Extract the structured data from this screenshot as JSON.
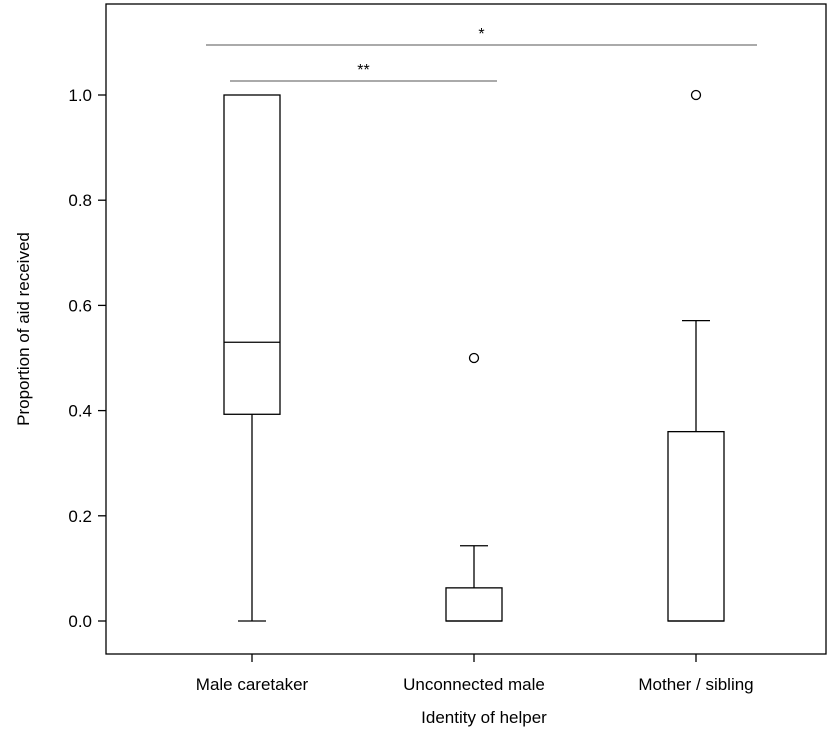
{
  "chart_data": {
    "type": "box",
    "title": "",
    "xlabel": "Identity of helper",
    "ylabel": "Proportion of aid received",
    "ylim": [
      -0.06,
      1.12
    ],
    "yticks": [
      "0.0",
      "0.2",
      "0.4",
      "0.6",
      "0.8",
      "1.0"
    ],
    "yticks_values": [
      0,
      0.2,
      0.4,
      0.6,
      0.8,
      1.0
    ],
    "grid": false,
    "categories": [
      "Male caretaker",
      "Unconnected male",
      "Mother / sibling"
    ],
    "boxes": [
      {
        "category": "Male caretaker",
        "whisker_low": 0.0,
        "q1": 0.393,
        "median": 0.53,
        "q3": 1.0,
        "whisker_high": 1.0,
        "outliers": []
      },
      {
        "category": "Unconnected male",
        "whisker_low": 0.0,
        "q1": 0.0,
        "median": 0.0,
        "q3": 0.063,
        "whisker_high": 0.143,
        "outliers": [
          0.5
        ]
      },
      {
        "category": "Mother / sibling",
        "whisker_low": 0.0,
        "q1": 0.0,
        "median": 0.0,
        "q3": 0.36,
        "whisker_high": 0.571,
        "outliers": [
          1.0
        ]
      }
    ],
    "significance": [
      {
        "from": "Male caretaker",
        "to": "Unconnected male",
        "label": "**"
      },
      {
        "from": "Male caretaker",
        "to": "Mother / sibling",
        "label": "*"
      }
    ]
  }
}
